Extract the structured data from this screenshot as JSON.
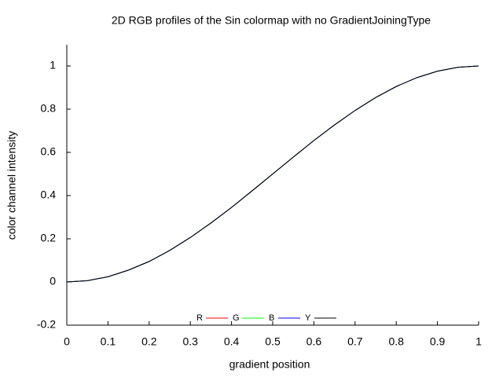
{
  "chart_data": {
    "type": "line",
    "title": "2D RGB profiles of the Sin colormap with no GradientJoiningType",
    "x_label": "gradient position",
    "y_label": "color channel intensity",
    "x": [
      0,
      0.05,
      0.1,
      0.15,
      0.2,
      0.25,
      0.3,
      0.35,
      0.4,
      0.45,
      0.5,
      0.55,
      0.6,
      0.65,
      0.7,
      0.75,
      0.8,
      0.85,
      0.9,
      0.95,
      1
    ],
    "series": [
      {
        "name": "R",
        "color": "#ff0000",
        "values": [
          0,
          0.006,
          0.024,
          0.055,
          0.095,
          0.146,
          0.206,
          0.273,
          0.345,
          0.422,
          0.5,
          0.578,
          0.655,
          0.727,
          0.794,
          0.854,
          0.905,
          0.946,
          0.976,
          0.994,
          1
        ]
      },
      {
        "name": "G",
        "color": "#00ff00",
        "values": [
          0,
          0.006,
          0.024,
          0.055,
          0.095,
          0.146,
          0.206,
          0.273,
          0.345,
          0.422,
          0.5,
          0.578,
          0.655,
          0.727,
          0.794,
          0.854,
          0.905,
          0.946,
          0.976,
          0.994,
          1
        ]
      },
      {
        "name": "B",
        "color": "#0000ff",
        "values": [
          0,
          0.006,
          0.024,
          0.055,
          0.095,
          0.146,
          0.206,
          0.273,
          0.345,
          0.422,
          0.5,
          0.578,
          0.655,
          0.727,
          0.794,
          0.854,
          0.905,
          0.946,
          0.976,
          0.994,
          1
        ]
      },
      {
        "name": "Y",
        "color": "#000000",
        "values": [
          0,
          0.006,
          0.024,
          0.055,
          0.095,
          0.146,
          0.206,
          0.273,
          0.345,
          0.422,
          0.5,
          0.578,
          0.655,
          0.727,
          0.794,
          0.854,
          0.905,
          0.946,
          0.976,
          0.994,
          1
        ]
      }
    ],
    "xlim": [
      0,
      1
    ],
    "xticks": [
      0,
      0.1,
      0.2,
      0.3,
      0.4,
      0.5,
      0.6,
      0.7,
      0.8,
      0.9,
      1
    ],
    "ylim": [
      -0.2,
      1.1
    ],
    "yticks": [
      -0.2,
      0,
      0.2,
      0.4,
      0.6,
      0.8,
      1
    ],
    "grid": false,
    "legend": "bottom"
  }
}
